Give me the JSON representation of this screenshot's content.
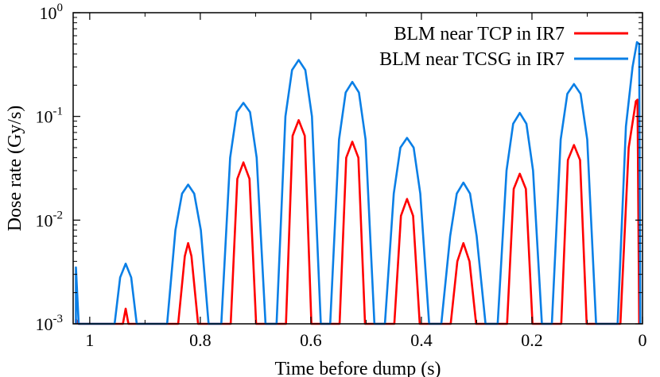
{
  "chart_data": {
    "type": "line",
    "title": "",
    "xlabel": "Time before dump (s)",
    "ylabel": "Dose rate (Gy/s)",
    "x_axis": {
      "reversed": true,
      "xlim": [
        1.03,
        0.0
      ],
      "ticks": [
        1,
        0.8,
        0.6,
        0.4,
        0.2,
        0
      ],
      "tick_labels": [
        "1",
        "0.8",
        "0.6",
        "0.4",
        "0.2",
        "0"
      ]
    },
    "y_axis": {
      "scale": "log",
      "ylim": [
        0.001,
        1.0
      ],
      "ticks": [
        0.001,
        0.01,
        0.1,
        1.0
      ],
      "tick_base": "10",
      "tick_exponents": [
        "-3",
        "-2",
        "-1",
        "0"
      ]
    },
    "grid": false,
    "legend": {
      "placement": "top-right"
    },
    "series": [
      {
        "name": "BLM near TCP in IR7",
        "color": "#ff0000",
        "points": [
          [
            1.025,
            0.001
          ],
          [
            1.025,
            0.0011
          ],
          [
            1.02,
            0.001
          ],
          [
            0.94,
            0.001
          ],
          [
            0.935,
            0.0014
          ],
          [
            0.93,
            0.001
          ],
          [
            0.84,
            0.001
          ],
          [
            0.828,
            0.0045
          ],
          [
            0.822,
            0.006
          ],
          [
            0.816,
            0.0045
          ],
          [
            0.804,
            0.001
          ],
          [
            0.745,
            0.001
          ],
          [
            0.733,
            0.025
          ],
          [
            0.722,
            0.036
          ],
          [
            0.711,
            0.025
          ],
          [
            0.699,
            0.001
          ],
          [
            0.645,
            0.001
          ],
          [
            0.633,
            0.065
          ],
          [
            0.622,
            0.092
          ],
          [
            0.611,
            0.065
          ],
          [
            0.599,
            0.001
          ],
          [
            0.548,
            0.001
          ],
          [
            0.536,
            0.04
          ],
          [
            0.525,
            0.057
          ],
          [
            0.514,
            0.04
          ],
          [
            0.502,
            0.001
          ],
          [
            0.449,
            0.001
          ],
          [
            0.437,
            0.011
          ],
          [
            0.426,
            0.016
          ],
          [
            0.415,
            0.011
          ],
          [
            0.403,
            0.001
          ],
          [
            0.347,
            0.001
          ],
          [
            0.335,
            0.004
          ],
          [
            0.324,
            0.006
          ],
          [
            0.313,
            0.004
          ],
          [
            0.301,
            0.001
          ],
          [
            0.245,
            0.001
          ],
          [
            0.233,
            0.02
          ],
          [
            0.222,
            0.028
          ],
          [
            0.211,
            0.02
          ],
          [
            0.199,
            0.001
          ],
          [
            0.147,
            0.001
          ],
          [
            0.135,
            0.038
          ],
          [
            0.124,
            0.053
          ],
          [
            0.113,
            0.038
          ],
          [
            0.101,
            0.001
          ],
          [
            0.04,
            0.001
          ],
          [
            0.025,
            0.05
          ],
          [
            0.012,
            0.14
          ],
          [
            0.009,
            0.145
          ],
          [
            0.006,
            0.001
          ]
        ]
      },
      {
        "name": "BLM near TCSG in IR7",
        "color": "#0a7fe6",
        "points": [
          [
            1.025,
            0.001
          ],
          [
            1.025,
            0.0035
          ],
          [
            1.02,
            0.001
          ],
          [
            0.955,
            0.001
          ],
          [
            0.945,
            0.0028
          ],
          [
            0.935,
            0.0038
          ],
          [
            0.925,
            0.0028
          ],
          [
            0.915,
            0.001
          ],
          [
            0.86,
            0.001
          ],
          [
            0.845,
            0.008
          ],
          [
            0.833,
            0.018
          ],
          [
            0.822,
            0.022
          ],
          [
            0.811,
            0.018
          ],
          [
            0.799,
            0.008
          ],
          [
            0.785,
            0.001
          ],
          [
            0.762,
            0.001
          ],
          [
            0.746,
            0.04
          ],
          [
            0.734,
            0.11
          ],
          [
            0.722,
            0.135
          ],
          [
            0.71,
            0.11
          ],
          [
            0.698,
            0.04
          ],
          [
            0.682,
            0.001
          ],
          [
            0.662,
            0.001
          ],
          [
            0.646,
            0.1
          ],
          [
            0.634,
            0.28
          ],
          [
            0.622,
            0.35
          ],
          [
            0.61,
            0.28
          ],
          [
            0.598,
            0.1
          ],
          [
            0.582,
            0.001
          ],
          [
            0.565,
            0.001
          ],
          [
            0.549,
            0.06
          ],
          [
            0.537,
            0.17
          ],
          [
            0.525,
            0.215
          ],
          [
            0.513,
            0.17
          ],
          [
            0.501,
            0.06
          ],
          [
            0.485,
            0.001
          ],
          [
            0.466,
            0.001
          ],
          [
            0.45,
            0.018
          ],
          [
            0.438,
            0.05
          ],
          [
            0.426,
            0.062
          ],
          [
            0.414,
            0.05
          ],
          [
            0.402,
            0.018
          ],
          [
            0.386,
            0.001
          ],
          [
            0.364,
            0.001
          ],
          [
            0.348,
            0.007
          ],
          [
            0.336,
            0.018
          ],
          [
            0.324,
            0.023
          ],
          [
            0.312,
            0.018
          ],
          [
            0.3,
            0.007
          ],
          [
            0.284,
            0.001
          ],
          [
            0.262,
            0.001
          ],
          [
            0.246,
            0.03
          ],
          [
            0.234,
            0.085
          ],
          [
            0.222,
            0.108
          ],
          [
            0.21,
            0.085
          ],
          [
            0.198,
            0.03
          ],
          [
            0.182,
            0.001
          ],
          [
            0.164,
            0.001
          ],
          [
            0.148,
            0.06
          ],
          [
            0.136,
            0.165
          ],
          [
            0.124,
            0.205
          ],
          [
            0.112,
            0.165
          ],
          [
            0.1,
            0.06
          ],
          [
            0.084,
            0.001
          ],
          [
            0.045,
            0.001
          ],
          [
            0.03,
            0.08
          ],
          [
            0.018,
            0.3
          ],
          [
            0.01,
            0.52
          ],
          [
            0.006,
            0.5
          ],
          [
            0.004,
            0.001
          ]
        ]
      }
    ]
  }
}
